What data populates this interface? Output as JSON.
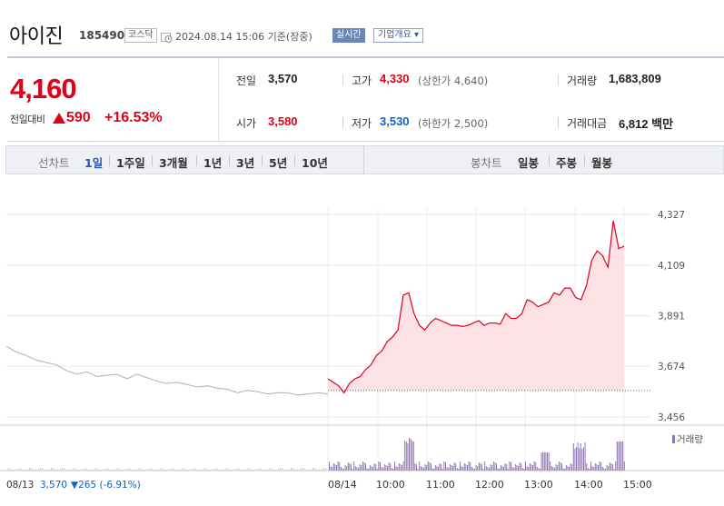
{
  "header": {
    "name": "아이진",
    "code": "185490",
    "market": "코스닥",
    "datetime": "2024.08.14 15:06  기준(장중)",
    "realtime_btn": "실시간",
    "company_btn": "기업개요 ▾"
  },
  "quote": {
    "price": "4,160",
    "change_label": "전일대비",
    "change_value": "590",
    "change_pct": "+16.53%",
    "prev_label": "전일",
    "prev_value": "3,570",
    "high_label": "고가",
    "high_value": "4,330",
    "upper_limit": "(상한가 4,640)",
    "volume_label": "거래량",
    "volume_value": "1,683,809",
    "open_label": "시가",
    "open_value": "3,580",
    "low_label": "저가",
    "low_value": "3,530",
    "lower_limit": "(하한가 2,500)",
    "amount_label": "거래대금",
    "amount_value": "6,812 백만"
  },
  "periods": {
    "line_label": "선차트",
    "items": [
      "1일",
      "1주일",
      "3개월",
      "1년",
      "3년",
      "5년",
      "10년"
    ],
    "selected": "1일",
    "candle_label": "봉차트",
    "candle_items": [
      "일봉",
      "주봉",
      "월봉"
    ]
  },
  "colors": {
    "up": "#e0001a",
    "down": "#1060c9",
    "fill": "#fde2e5",
    "prev": "#b0b0b0"
  },
  "chart_data": {
    "type": "line",
    "y_ticks": [
      "4,327",
      "4,109",
      "3,891",
      "3,674",
      "3,456"
    ],
    "ylim": [
      3456,
      4327
    ],
    "baseline": 3570,
    "prev_day_series": [
      3760,
      3735,
      3720,
      3700,
      3690,
      3680,
      3655,
      3640,
      3650,
      3630,
      3635,
      3640,
      3620,
      3640,
      3625,
      3610,
      3600,
      3605,
      3595,
      3585,
      3590,
      3580,
      3575,
      3560,
      3570,
      3565,
      3555,
      3560,
      3560,
      3550,
      3555,
      3560,
      3555
    ],
    "today_series": [
      3620,
      3605,
      3590,
      3560,
      3600,
      3620,
      3630,
      3660,
      3680,
      3720,
      3740,
      3780,
      3800,
      3830,
      3980,
      3990,
      3900,
      3850,
      3830,
      3860,
      3880,
      3870,
      3860,
      3850,
      3850,
      3845,
      3850,
      3860,
      3870,
      3850,
      3860,
      3860,
      3855,
      3900,
      3880,
      3880,
      3900,
      3960,
      3950,
      3930,
      3940,
      3950,
      3990,
      3980,
      4010,
      4010,
      3970,
      3960,
      4020,
      4130,
      4170,
      4150,
      4100,
      4300,
      4180,
      4190
    ],
    "x_ticks": [
      "08/13",
      "08/14",
      "10:00",
      "11:00",
      "12:00",
      "13:00",
      "14:00",
      "15:00"
    ],
    "volume_label": "거래량",
    "prev_close_note": "08/13",
    "prev_close_value": "3,570",
    "prev_close_change": "▼265 (-6.91%)"
  }
}
